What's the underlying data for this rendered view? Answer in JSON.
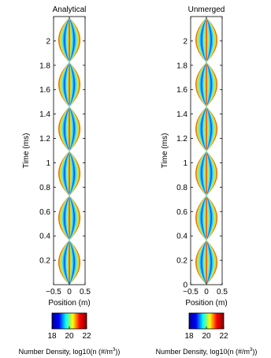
{
  "chart_data": [
    {
      "type": "heatmap",
      "title": "Analytical",
      "xlabel": "Position (m)",
      "ylabel": "Time (ms)",
      "xlim": [
        -0.5,
        0.5
      ],
      "ylim": [
        0,
        2.2
      ],
      "x_ticks": [
        -0.5,
        0,
        0.5
      ],
      "x_tick_labels": [
        "−0.5",
        "0",
        "0.5"
      ],
      "y_ticks": [
        0.2,
        0.4,
        0.6,
        0.8,
        1,
        1.2,
        1.4,
        1.6,
        1.8,
        2
      ],
      "y_tick_labels": [
        "0.2",
        "0.4",
        "0.6",
        "0.8",
        "1",
        "1.2",
        "1.4",
        "1.6",
        "1.8",
        "2"
      ],
      "pinch_times_ms": [
        0,
        0.365,
        0.73,
        1.095,
        1.46,
        1.825,
        2.19
      ],
      "max_half_width_m": 0.35,
      "colorbar": {
        "label": "Number Density, log10(n (#/m3))",
        "range": [
          18,
          22
        ],
        "ticks": [
          18,
          20,
          22
        ],
        "colormap": "jet"
      }
    },
    {
      "type": "heatmap",
      "title": "Unmerged",
      "xlabel": "Position (m)",
      "ylabel": "Time (ms)",
      "xlim": [
        -0.5,
        0.5
      ],
      "ylim": [
        0,
        2.2
      ],
      "x_ticks": [
        -0.5,
        0,
        0.5
      ],
      "x_tick_labels": [
        "−0.5",
        "0",
        "0.5"
      ],
      "y_ticks": [
        0,
        0.2,
        0.4,
        0.6,
        0.8,
        1,
        1.2,
        1.4,
        1.6,
        1.8,
        2
      ],
      "y_tick_labels": [
        "0",
        "0.2",
        "0.4",
        "0.6",
        "0.8",
        "1",
        "1.2",
        "1.4",
        "1.6",
        "1.8",
        "2"
      ],
      "pinch_times_ms": [
        0,
        0.365,
        0.73,
        1.095,
        1.46,
        1.825,
        2.19
      ],
      "max_half_width_m": 0.35,
      "colorbar": {
        "label": "Number Density, log10(n (#/m3))",
        "range": [
          18,
          22
        ],
        "ticks": [
          18,
          20,
          22
        ],
        "colormap": "jet"
      }
    }
  ],
  "colormap_stops": [
    "#00008f",
    "#0000ff",
    "#00ffff",
    "#ffff00",
    "#ff0000",
    "#800000"
  ],
  "bubble_band_colors": [
    "#e06a10",
    "#f4d21a",
    "#b8e85a",
    "#5ff0d8",
    "#2bb8ff",
    "#0055ff",
    "#2bb8ff",
    "#5ff0d8",
    "#b8e85a",
    "#f4d21a"
  ],
  "labels": {
    "cbar_prefix": "Number Density, log10(n (#/m",
    "cbar_exp": "3",
    "cbar_suffix": "))"
  }
}
